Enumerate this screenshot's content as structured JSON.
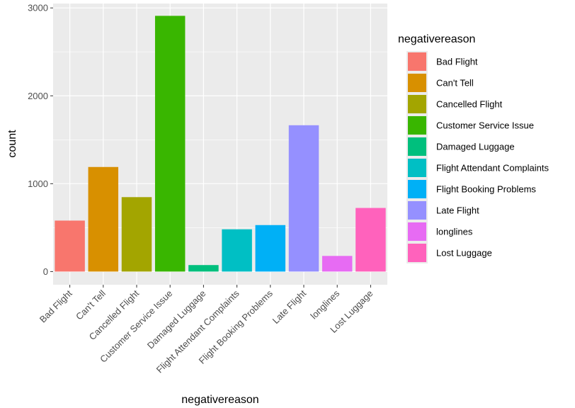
{
  "chart_data": {
    "type": "bar",
    "categories": [
      "Bad Flight",
      "Can't Tell",
      "Cancelled Flight",
      "Customer Service Issue",
      "Damaged Luggage",
      "Flight Attendant Complaints",
      "Flight Booking Problems",
      "Late Flight",
      "longlines",
      "Lost Luggage"
    ],
    "values": [
      580,
      1190,
      847,
      2910,
      74,
      481,
      529,
      1665,
      178,
      724
    ],
    "colors": [
      "#F8766D",
      "#D89000",
      "#A3A500",
      "#39B600",
      "#00BF7D",
      "#00BFC4",
      "#00B0F6",
      "#9590FF",
      "#E76BF3",
      "#FF62BC"
    ],
    "xlabel": "negativereason",
    "ylabel": "count",
    "ylim": [
      -150,
      3050
    ],
    "yticks": [
      0,
      1000,
      2000,
      3000
    ],
    "grid": true,
    "legend": {
      "title": "negativereason",
      "placement": "right",
      "entries": [
        "Bad Flight",
        "Can't Tell",
        "Cancelled Flight",
        "Customer Service Issue",
        "Damaged Luggage",
        "Flight Attendant Complaints",
        "Flight Booking Problems",
        "Late Flight",
        "longlines",
        "Lost Luggage"
      ]
    }
  }
}
